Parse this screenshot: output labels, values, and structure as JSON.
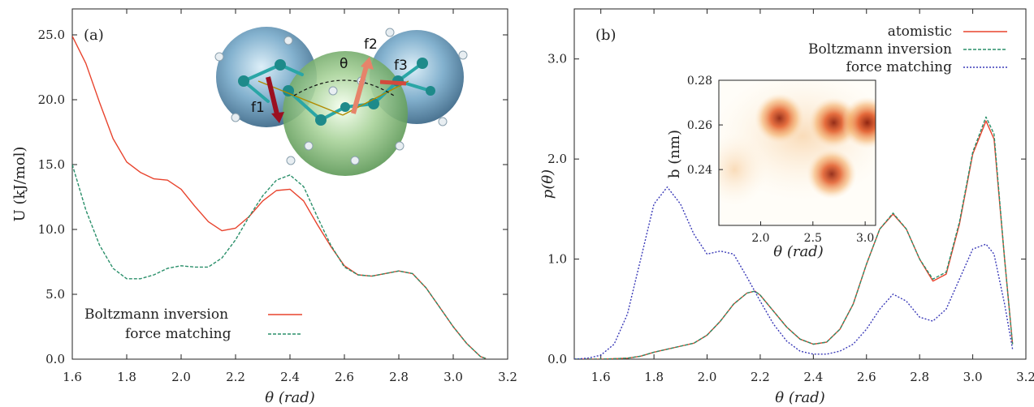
{
  "chart_data": [
    {
      "type": "line",
      "panel_label": "(a)",
      "xlabel": "θ (rad)",
      "ylabel": "U (kJ/mol)",
      "xlim": [
        1.6,
        3.2
      ],
      "ylim": [
        0,
        27
      ],
      "xticks": [
        "1.6",
        "1.8",
        "2.0",
        "2.2",
        "2.4",
        "2.6",
        "2.8",
        "3.0",
        "3.2"
      ],
      "yticks": [
        "0.0",
        "5.0",
        "10.0",
        "15.0",
        "20.0",
        "25.0"
      ],
      "ytick_values": [
        0,
        5,
        10,
        15,
        20,
        25
      ],
      "legend_position": "bottom-left",
      "series": [
        {
          "name": "Boltzmann inversion",
          "color": "#e8432d",
          "dash": "solid",
          "x": [
            1.6,
            1.65,
            1.7,
            1.75,
            1.8,
            1.85,
            1.9,
            1.95,
            2.0,
            2.05,
            2.1,
            2.15,
            2.2,
            2.25,
            2.3,
            2.35,
            2.4,
            2.45,
            2.5,
            2.55,
            2.6,
            2.65,
            2.7,
            2.75,
            2.8,
            2.85,
            2.9,
            2.95,
            3.0,
            3.05,
            3.1,
            3.12
          ],
          "y": [
            24.9,
            22.8,
            19.8,
            17.0,
            15.2,
            14.4,
            13.9,
            13.8,
            13.1,
            11.8,
            10.6,
            9.9,
            10.1,
            11.0,
            12.2,
            13.0,
            13.1,
            12.2,
            10.4,
            8.7,
            7.2,
            6.5,
            6.4,
            6.6,
            6.8,
            6.6,
            5.5,
            4.0,
            2.5,
            1.2,
            0.2,
            0.05
          ]
        },
        {
          "name": "force matching",
          "color": "#2a8f6a",
          "dash": "dashed",
          "x": [
            1.6,
            1.65,
            1.7,
            1.75,
            1.8,
            1.85,
            1.9,
            1.95,
            2.0,
            2.05,
            2.1,
            2.15,
            2.2,
            2.25,
            2.3,
            2.35,
            2.4,
            2.45,
            2.5,
            2.55,
            2.6,
            2.65,
            2.7,
            2.75,
            2.8,
            2.85,
            2.9,
            2.95,
            3.0,
            3.05,
            3.1,
            3.12
          ],
          "y": [
            15.0,
            11.5,
            8.8,
            7.0,
            6.2,
            6.2,
            6.5,
            7.0,
            7.2,
            7.1,
            7.1,
            7.8,
            9.2,
            11.0,
            12.6,
            13.8,
            14.2,
            13.3,
            11.0,
            8.8,
            7.1,
            6.5,
            6.4,
            6.6,
            6.8,
            6.6,
            5.5,
            4.0,
            2.5,
            1.2,
            0.2,
            0.05
          ]
        }
      ],
      "annotations": [
        "θ",
        "f1",
        "f2",
        "f3"
      ]
    },
    {
      "type": "line",
      "panel_label": "(b)",
      "xlabel": "θ (rad)",
      "ylabel": "p(θ)",
      "xlim": [
        1.5,
        3.2
      ],
      "ylim": [
        0,
        3.5
      ],
      "xticks": [
        "1.6",
        "1.8",
        "2.0",
        "2.2",
        "2.4",
        "2.6",
        "2.8",
        "3.0",
        "3.2"
      ],
      "yticks": [
        "0.0",
        "1.0",
        "2.0",
        "3.0"
      ],
      "ytick_values": [
        0,
        1,
        2,
        3
      ],
      "legend_position": "top-right",
      "series": [
        {
          "name": "atomistic",
          "color": "#e8432d",
          "dash": "solid",
          "x": [
            1.5,
            1.6,
            1.7,
            1.75,
            1.8,
            1.85,
            1.9,
            1.95,
            2.0,
            2.05,
            2.1,
            2.15,
            2.18,
            2.2,
            2.25,
            2.3,
            2.35,
            2.4,
            2.45,
            2.5,
            2.55,
            2.6,
            2.65,
            2.7,
            2.75,
            2.8,
            2.85,
            2.9,
            2.95,
            3.0,
            3.05,
            3.08,
            3.12,
            3.15
          ],
          "y": [
            0.0,
            0.0,
            0.01,
            0.03,
            0.07,
            0.1,
            0.13,
            0.16,
            0.24,
            0.38,
            0.55,
            0.66,
            0.68,
            0.64,
            0.48,
            0.32,
            0.2,
            0.15,
            0.17,
            0.3,
            0.55,
            0.95,
            1.3,
            1.45,
            1.3,
            1.0,
            0.78,
            0.85,
            1.35,
            2.05,
            2.38,
            2.2,
            1.0,
            0.15
          ]
        },
        {
          "name": "Boltzmann inversion",
          "color": "#2a8f6a",
          "dash": "dashed",
          "x": [
            1.5,
            1.6,
            1.7,
            1.75,
            1.8,
            1.85,
            1.9,
            1.95,
            2.0,
            2.05,
            2.1,
            2.15,
            2.18,
            2.2,
            2.25,
            2.3,
            2.35,
            2.4,
            2.45,
            2.5,
            2.55,
            2.6,
            2.65,
            2.7,
            2.75,
            2.8,
            2.85,
            2.9,
            2.95,
            3.0,
            3.05,
            3.08,
            3.12,
            3.15
          ],
          "y": [
            0.0,
            0.0,
            0.01,
            0.03,
            0.07,
            0.1,
            0.13,
            0.16,
            0.24,
            0.38,
            0.55,
            0.66,
            0.68,
            0.64,
            0.48,
            0.32,
            0.2,
            0.15,
            0.17,
            0.3,
            0.55,
            0.95,
            1.3,
            1.46,
            1.3,
            1.0,
            0.8,
            0.87,
            1.37,
            2.07,
            2.42,
            2.25,
            1.0,
            0.15
          ]
        },
        {
          "name": "force matching",
          "color": "#3a3ab8",
          "dash": "dotted",
          "x": [
            1.5,
            1.55,
            1.6,
            1.65,
            1.7,
            1.75,
            1.8,
            1.85,
            1.9,
            1.95,
            2.0,
            2.05,
            2.1,
            2.15,
            2.2,
            2.25,
            2.3,
            2.35,
            2.4,
            2.45,
            2.5,
            2.55,
            2.6,
            2.65,
            2.7,
            2.75,
            2.8,
            2.85,
            2.9,
            2.95,
            3.0,
            3.05,
            3.08,
            3.12,
            3.15
          ],
          "y": [
            0.0,
            0.01,
            0.04,
            0.15,
            0.45,
            1.0,
            1.55,
            1.72,
            1.55,
            1.25,
            1.05,
            1.08,
            1.05,
            0.82,
            0.58,
            0.35,
            0.18,
            0.08,
            0.05,
            0.05,
            0.08,
            0.15,
            0.3,
            0.5,
            0.65,
            0.58,
            0.42,
            0.38,
            0.5,
            0.8,
            1.1,
            1.15,
            1.05,
            0.55,
            0.1
          ]
        }
      ]
    },
    {
      "type": "heatmap",
      "xlabel": "θ (rad)",
      "ylabel": "b (nm)",
      "xlim": [
        1.6,
        3.1
      ],
      "ylim": [
        0.215,
        0.28
      ],
      "xticks": [
        "2.0",
        "2.5",
        "3.0"
      ],
      "xtick_values": [
        2.0,
        2.5,
        3.0
      ],
      "yticks": [
        "0.24",
        "0.26",
        "0.28"
      ],
      "ytick_values": [
        0.24,
        0.26,
        0.28
      ],
      "clusters": [
        {
          "x": 2.18,
          "y": 0.263,
          "density": 0.85
        },
        {
          "x": 2.7,
          "y": 0.261,
          "density": 0.9
        },
        {
          "x": 3.02,
          "y": 0.261,
          "density": 1.0
        },
        {
          "x": 2.68,
          "y": 0.238,
          "density": 0.85
        }
      ]
    }
  ]
}
